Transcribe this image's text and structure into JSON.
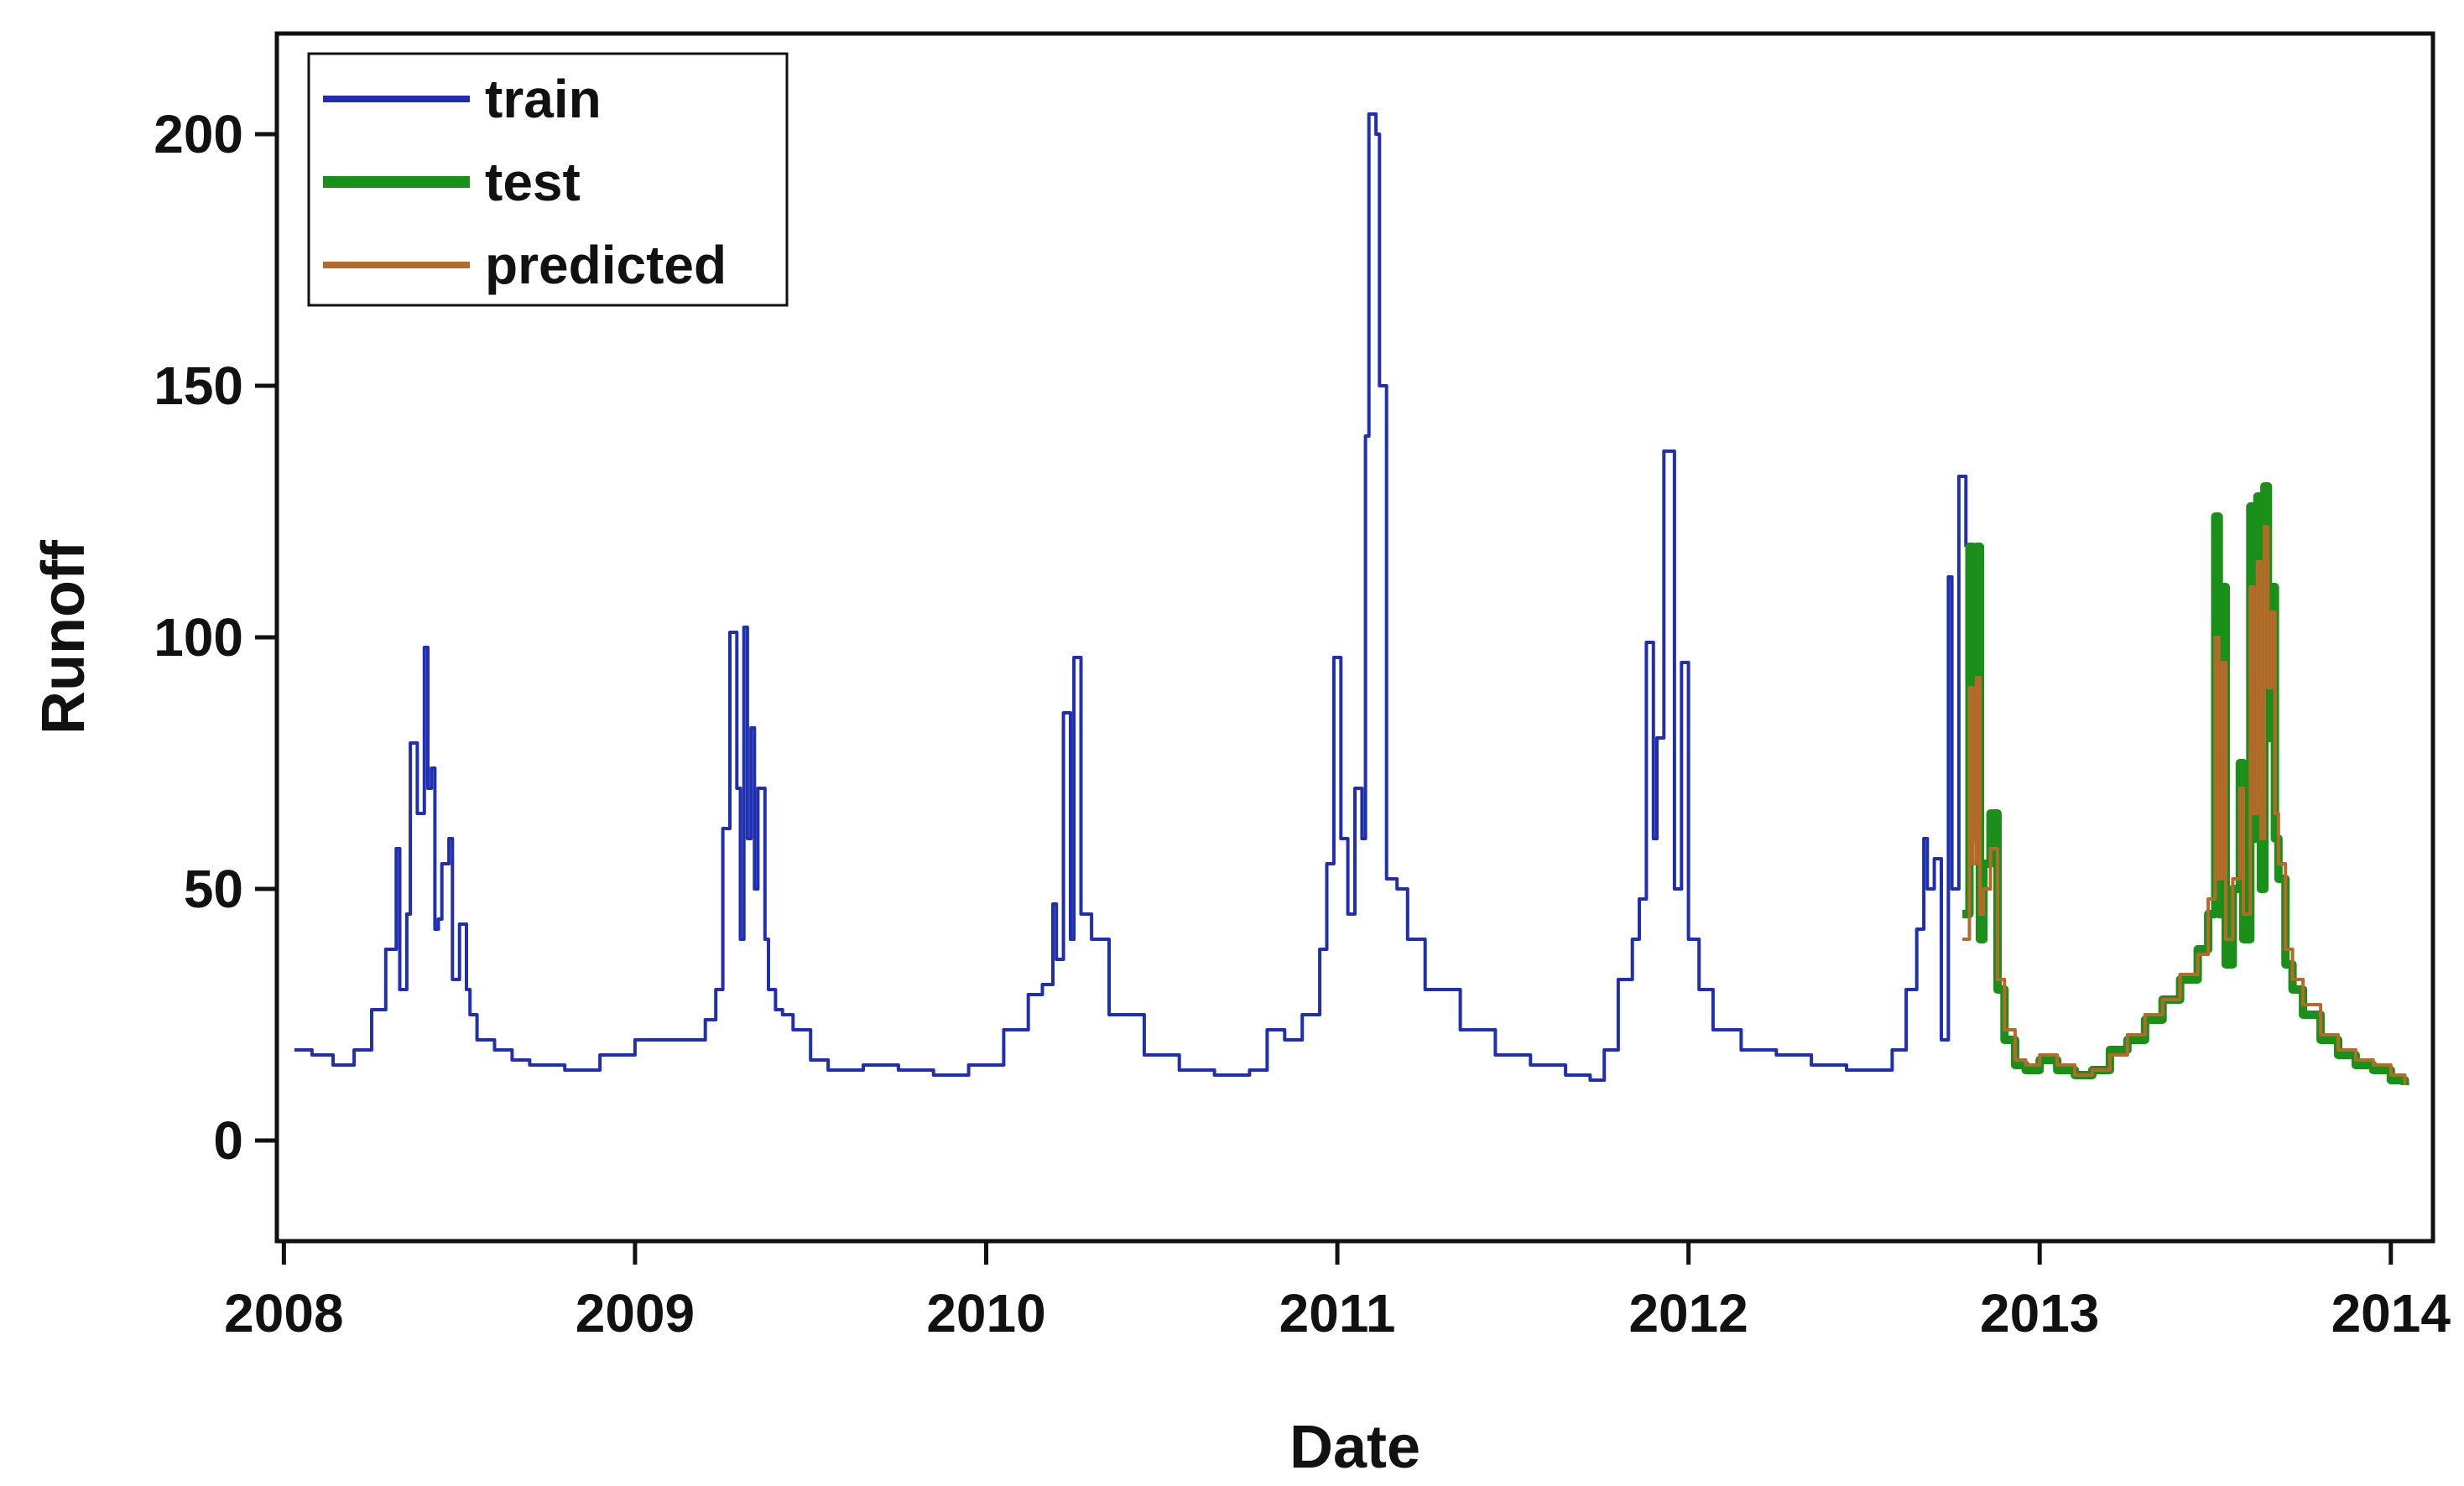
{
  "chart_data": {
    "type": "line",
    "title": "",
    "xlabel": "Date",
    "ylabel": "Runoff",
    "xlim": [
      2007.98,
      2014.12
    ],
    "ylim": [
      -20,
      220
    ],
    "xticks": [
      2008,
      2009,
      2010,
      2011,
      2012,
      2013,
      2014
    ],
    "yticks": [
      0,
      50,
      100,
      150,
      200
    ],
    "xtick_labels": [
      "2008",
      "2009",
      "2010",
      "2011",
      "2012",
      "2013",
      "2014"
    ],
    "ytick_labels": [
      "0",
      "50",
      "100",
      "150",
      "200"
    ],
    "grid": false,
    "legend_position": "top-left",
    "series": [
      {
        "name": "train",
        "color": "#1f2fb0",
        "x": [
          2008.03,
          2008.08,
          2008.14,
          2008.2,
          2008.25,
          2008.29,
          2008.32,
          2008.33,
          2008.35,
          2008.36,
          2008.38,
          2008.4,
          2008.41,
          2008.42,
          2008.43,
          2008.44,
          2008.45,
          2008.47,
          2008.48,
          2008.5,
          2008.52,
          2008.53,
          2008.55,
          2008.57,
          2008.6,
          2008.65,
          2008.7,
          2008.8,
          2008.9,
          2009.0,
          2009.1,
          2009.2,
          2009.23,
          2009.25,
          2009.27,
          2009.29,
          2009.3,
          2009.31,
          2009.32,
          2009.33,
          2009.34,
          2009.35,
          2009.37,
          2009.38,
          2009.4,
          2009.42,
          2009.45,
          2009.5,
          2009.55,
          2009.65,
          2009.75,
          2009.85,
          2009.95,
          2010.05,
          2010.12,
          2010.16,
          2010.19,
          2010.2,
          2010.22,
          2010.24,
          2010.25,
          2010.27,
          2010.3,
          2010.35,
          2010.45,
          2010.55,
          2010.65,
          2010.72,
          2010.75,
          2010.8,
          2010.85,
          2010.9,
          2010.95,
          2010.97,
          2010.99,
          2011.01,
          2011.03,
          2011.05,
          2011.07,
          2011.08,
          2011.09,
          2011.11,
          2011.12,
          2011.14,
          2011.17,
          2011.2,
          2011.25,
          2011.35,
          2011.45,
          2011.55,
          2011.65,
          2011.72,
          2011.76,
          2011.8,
          2011.84,
          2011.86,
          2011.88,
          2011.9,
          2011.91,
          2011.93,
          2011.96,
          2011.98,
          2012.0,
          2012.03,
          2012.07,
          2012.15,
          2012.25,
          2012.35,
          2012.45,
          2012.52,
          2012.58,
          2012.62,
          2012.65,
          2012.67,
          2012.68,
          2012.7,
          2012.72,
          2012.74,
          2012.75,
          2012.77,
          2012.79
        ],
        "y": [
          18,
          17,
          15,
          18,
          26,
          38,
          58,
          30,
          45,
          79,
          65,
          98,
          70,
          74,
          42,
          44,
          55,
          60,
          32,
          43,
          30,
          25,
          20,
          20,
          18,
          16,
          15,
          14,
          17,
          20,
          20,
          24,
          30,
          62,
          101,
          70,
          40,
          102,
          60,
          82,
          50,
          70,
          40,
          30,
          26,
          25,
          22,
          16,
          14,
          15,
          14,
          13,
          15,
          22,
          29,
          31,
          47,
          36,
          85,
          40,
          96,
          45,
          40,
          25,
          17,
          14,
          13,
          13,
          14,
          22,
          20,
          25,
          38,
          55,
          96,
          60,
          45,
          70,
          60,
          140,
          204,
          200,
          150,
          52,
          50,
          40,
          30,
          22,
          17,
          15,
          13,
          12,
          18,
          32,
          40,
          48,
          99,
          60,
          80,
          137,
          50,
          95,
          40,
          30,
          22,
          18,
          17,
          15,
          14,
          14,
          18,
          30,
          42,
          60,
          50,
          56,
          20,
          112,
          50,
          132,
          118
        ]
      },
      {
        "name": "test",
        "color": "#1a8f1a",
        "x": [
          2012.78,
          2012.8,
          2012.81,
          2012.82,
          2012.83,
          2012.84,
          2012.86,
          2012.88,
          2012.9,
          2012.93,
          2012.96,
          2013.0,
          2013.05,
          2013.1,
          2013.15,
          2013.2,
          2013.25,
          2013.3,
          2013.35,
          2013.4,
          2013.45,
          2013.48,
          2013.5,
          2013.51,
          2013.52,
          2013.53,
          2013.55,
          2013.57,
          2013.58,
          2013.6,
          2013.61,
          2013.62,
          2013.63,
          2013.64,
          2013.65,
          2013.66,
          2013.67,
          2013.68,
          2013.7,
          2013.72,
          2013.75,
          2013.8,
          2013.85,
          2013.9,
          2013.95,
          2014.0,
          2014.04
        ],
        "y": [
          45,
          118,
          60,
          118,
          40,
          55,
          65,
          30,
          20,
          15,
          14,
          16,
          14,
          13,
          14,
          18,
          20,
          24,
          28,
          32,
          38,
          45,
          124,
          45,
          110,
          35,
          50,
          75,
          40,
          126,
          60,
          128,
          50,
          130,
          80,
          110,
          60,
          52,
          35,
          30,
          25,
          20,
          17,
          15,
          14,
          12,
          11
        ]
      },
      {
        "name": "predicted",
        "color": "#b56a2a",
        "x": [
          2012.78,
          2012.8,
          2012.81,
          2012.82,
          2012.83,
          2012.84,
          2012.86,
          2012.88,
          2012.9,
          2012.93,
          2012.96,
          2013.0,
          2013.05,
          2013.1,
          2013.15,
          2013.2,
          2013.25,
          2013.3,
          2013.35,
          2013.4,
          2013.45,
          2013.48,
          2013.5,
          2013.51,
          2013.52,
          2013.53,
          2013.55,
          2013.57,
          2013.58,
          2013.6,
          2013.61,
          2013.62,
          2013.63,
          2013.64,
          2013.65,
          2013.66,
          2013.67,
          2013.68,
          2013.7,
          2013.72,
          2013.75,
          2013.8,
          2013.85,
          2013.9,
          2013.95,
          2014.0,
          2014.04
        ],
        "y": [
          40,
          90,
          55,
          92,
          45,
          50,
          58,
          32,
          22,
          16,
          15,
          17,
          15,
          13,
          14,
          17,
          21,
          25,
          28,
          33,
          37,
          48,
          100,
          52,
          95,
          40,
          52,
          70,
          45,
          110,
          65,
          115,
          60,
          122,
          90,
          105,
          65,
          55,
          38,
          32,
          27,
          21,
          18,
          16,
          15,
          13,
          11
        ]
      }
    ]
  }
}
